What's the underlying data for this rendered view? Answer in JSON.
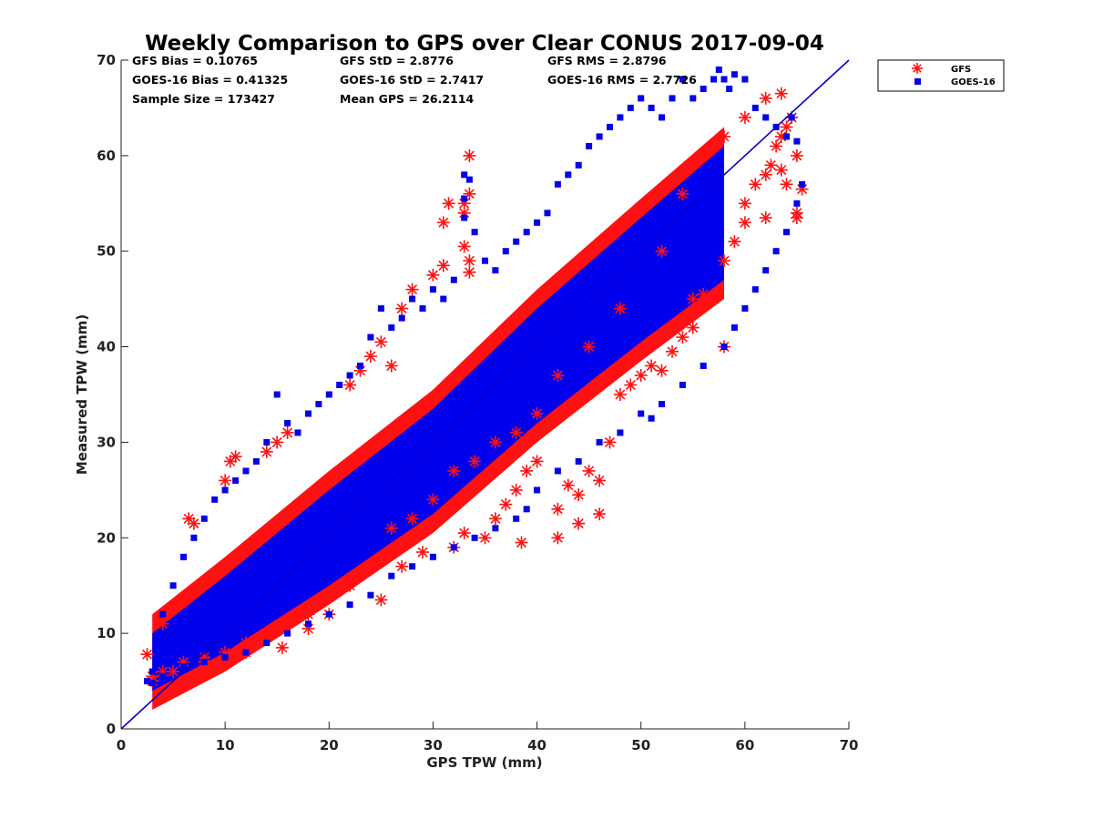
{
  "chart_data": {
    "type": "scatter",
    "title": "Weekly Comparison to GPS over Clear CONUS 2017-09-04",
    "xlabel": "GPS TPW (mm)",
    "ylabel": "Measured TPW (mm)",
    "xlim": [
      0,
      70
    ],
    "ylim": [
      0,
      70
    ],
    "xticks": [
      "0",
      "10",
      "20",
      "30",
      "40",
      "50",
      "60",
      "70"
    ],
    "yticks": [
      "0",
      "10",
      "20",
      "30",
      "40",
      "50",
      "60",
      "70"
    ],
    "grid": false,
    "legend_position": "outside-top-right",
    "reference_line": {
      "x": [
        0,
        70
      ],
      "y": [
        0,
        70
      ],
      "color": "#0000cc"
    },
    "stats": [
      "GFS Bias = 0.10765",
      "GFS StD = 2.8776",
      "GFS RMS = 2.8796",
      "GOES-16 Bias = 0.41325",
      "GOES-16 StD = 2.7417",
      "GOES-16 RMS = 2.7726",
      "Sample Size = 173427",
      "Mean GPS = 26.2114"
    ],
    "series": [
      {
        "name": "GFS",
        "marker": "asterisk",
        "color": "#ff1111",
        "points": [
          [
            2.5,
            7.8
          ],
          [
            3,
            5.5
          ],
          [
            4,
            11
          ],
          [
            5,
            6
          ],
          [
            6.5,
            22
          ],
          [
            7,
            21.5
          ],
          [
            8,
            7
          ],
          [
            9,
            6.5
          ],
          [
            10,
            26
          ],
          [
            10.5,
            28
          ],
          [
            11,
            28.5
          ],
          [
            12,
            8
          ],
          [
            14,
            29
          ],
          [
            15,
            30
          ],
          [
            15.5,
            8.5
          ],
          [
            16,
            31
          ],
          [
            18,
            10.5
          ],
          [
            20,
            12
          ],
          [
            22,
            36
          ],
          [
            23,
            37.5
          ],
          [
            24,
            39
          ],
          [
            25,
            40.5
          ],
          [
            25,
            13.5
          ],
          [
            26,
            38
          ],
          [
            27,
            44
          ],
          [
            28,
            46
          ],
          [
            27,
            17
          ],
          [
            29,
            18.5
          ],
          [
            30,
            47.5
          ],
          [
            31,
            48.5
          ],
          [
            31,
            53
          ],
          [
            31.5,
            55
          ],
          [
            33,
            55
          ],
          [
            33,
            54
          ],
          [
            33.5,
            56
          ],
          [
            33.5,
            60
          ],
          [
            33,
            50.5
          ],
          [
            33.5,
            49
          ],
          [
            33.5,
            47.8
          ],
          [
            32,
            19
          ],
          [
            33,
            20.5
          ],
          [
            35,
            20
          ],
          [
            36,
            22
          ],
          [
            37,
            23.5
          ],
          [
            38.5,
            19.5
          ],
          [
            38,
            25
          ],
          [
            39,
            27
          ],
          [
            40,
            28
          ],
          [
            42,
            23
          ],
          [
            42,
            20
          ],
          [
            43,
            25.5
          ],
          [
            44,
            24.5
          ],
          [
            44,
            21.5
          ],
          [
            45,
            27
          ],
          [
            46,
            22.5
          ],
          [
            46,
            26
          ],
          [
            47,
            30
          ],
          [
            48,
            35
          ],
          [
            49,
            36
          ],
          [
            50,
            37
          ],
          [
            51,
            38
          ],
          [
            52,
            37.5
          ],
          [
            53,
            39.5
          ],
          [
            54,
            41
          ],
          [
            55,
            42
          ],
          [
            55,
            45
          ],
          [
            56,
            45.5
          ],
          [
            57,
            45
          ],
          [
            58,
            40
          ],
          [
            58,
            49
          ],
          [
            59,
            51
          ],
          [
            60,
            53
          ],
          [
            60,
            55
          ],
          [
            61,
            57
          ],
          [
            62,
            53.5
          ],
          [
            62,
            58
          ],
          [
            62.5,
            59
          ],
          [
            63,
            61
          ],
          [
            63.5,
            62
          ],
          [
            63.5,
            58.5
          ],
          [
            64,
            57
          ],
          [
            64,
            63
          ],
          [
            64.5,
            64
          ],
          [
            65,
            53.5
          ],
          [
            65,
            54
          ],
          [
            65,
            60
          ],
          [
            65.5,
            56.5
          ],
          [
            63.5,
            66.5
          ],
          [
            62,
            66
          ],
          [
            60,
            64
          ],
          [
            58,
            62
          ],
          [
            56,
            60
          ],
          [
            54,
            56
          ],
          [
            52,
            50
          ],
          [
            48,
            44
          ],
          [
            45,
            40
          ],
          [
            42,
            37
          ],
          [
            40,
            33
          ],
          [
            38,
            31
          ],
          [
            36,
            30
          ],
          [
            34,
            28
          ],
          [
            32,
            27
          ],
          [
            30,
            24
          ],
          [
            28,
            22
          ],
          [
            26,
            21
          ],
          [
            24,
            17
          ],
          [
            22,
            15
          ],
          [
            20,
            14
          ],
          [
            18,
            12
          ],
          [
            16,
            11
          ],
          [
            14,
            10
          ],
          [
            12,
            9
          ],
          [
            10,
            8
          ],
          [
            8,
            7.5
          ],
          [
            6,
            7
          ],
          [
            4,
            6
          ],
          [
            3,
            5
          ]
        ]
      },
      {
        "name": "GOES-16",
        "marker": "square",
        "color": "#0000ee",
        "points": [
          [
            2.5,
            5
          ],
          [
            3,
            6
          ],
          [
            4,
            12
          ],
          [
            5,
            15
          ],
          [
            6,
            18
          ],
          [
            7,
            20
          ],
          [
            8,
            22
          ],
          [
            9,
            24
          ],
          [
            10,
            25
          ],
          [
            11,
            26
          ],
          [
            12,
            27
          ],
          [
            13,
            28
          ],
          [
            14,
            30
          ],
          [
            15,
            35
          ],
          [
            16,
            32
          ],
          [
            17,
            31
          ],
          [
            18,
            33
          ],
          [
            19,
            34
          ],
          [
            20,
            35
          ],
          [
            21,
            36
          ],
          [
            22,
            37
          ],
          [
            23,
            38
          ],
          [
            24,
            41
          ],
          [
            25,
            44
          ],
          [
            26,
            42
          ],
          [
            27,
            43
          ],
          [
            28,
            45
          ],
          [
            29,
            44
          ],
          [
            30,
            46
          ],
          [
            31,
            45
          ],
          [
            32,
            47
          ],
          [
            33,
            58
          ],
          [
            33.5,
            57.5
          ],
          [
            33,
            55.5
          ],
          [
            33,
            53.5
          ],
          [
            34,
            52
          ],
          [
            35,
            49
          ],
          [
            36,
            48
          ],
          [
            37,
            50
          ],
          [
            38,
            51
          ],
          [
            39,
            52
          ],
          [
            40,
            53
          ],
          [
            41,
            54
          ],
          [
            42,
            57
          ],
          [
            43,
            58
          ],
          [
            44,
            59
          ],
          [
            45,
            61
          ],
          [
            46,
            62
          ],
          [
            47,
            63
          ],
          [
            48,
            64
          ],
          [
            49,
            65
          ],
          [
            50,
            66
          ],
          [
            51,
            65
          ],
          [
            52,
            64
          ],
          [
            53,
            66
          ],
          [
            54,
            68
          ],
          [
            55,
            66
          ],
          [
            56,
            67
          ],
          [
            57,
            68
          ],
          [
            57.5,
            69
          ],
          [
            58,
            68
          ],
          [
            58.5,
            67
          ],
          [
            59,
            68.5
          ],
          [
            60,
            68
          ],
          [
            61,
            65
          ],
          [
            62,
            64
          ],
          [
            63,
            63
          ],
          [
            64,
            62
          ],
          [
            64.5,
            64
          ],
          [
            65,
            61.5
          ],
          [
            65.5,
            57
          ],
          [
            65,
            55
          ],
          [
            64,
            52
          ],
          [
            63,
            50
          ],
          [
            62,
            48
          ],
          [
            61,
            46
          ],
          [
            60,
            44
          ],
          [
            59,
            42
          ],
          [
            58,
            40
          ],
          [
            56,
            38
          ],
          [
            54,
            36
          ],
          [
            52,
            34
          ],
          [
            51,
            32.5
          ],
          [
            50,
            33
          ],
          [
            48,
            31
          ],
          [
            46,
            30
          ],
          [
            44,
            28
          ],
          [
            42,
            27
          ],
          [
            40,
            25
          ],
          [
            39,
            23
          ],
          [
            38,
            22
          ],
          [
            36,
            21
          ],
          [
            34,
            20
          ],
          [
            32,
            19
          ],
          [
            30,
            18
          ],
          [
            28,
            17
          ],
          [
            26,
            16
          ],
          [
            24,
            14
          ],
          [
            22,
            13
          ],
          [
            20,
            12
          ],
          [
            18,
            11
          ],
          [
            16,
            10
          ],
          [
            14,
            9
          ],
          [
            12,
            8
          ],
          [
            10,
            7.5
          ],
          [
            8,
            7
          ],
          [
            6,
            6.5
          ],
          [
            4,
            5.5
          ],
          [
            3,
            4.8
          ]
        ]
      }
    ],
    "density_band": {
      "center": [
        [
          3,
          7
        ],
        [
          10,
          12
        ],
        [
          20,
          20
        ],
        [
          30,
          28
        ],
        [
          40,
          38
        ],
        [
          50,
          47
        ],
        [
          58,
          54
        ]
      ],
      "half_width": [
        3,
        4,
        5,
        5.5,
        6,
        6.5,
        7
      ]
    }
  }
}
